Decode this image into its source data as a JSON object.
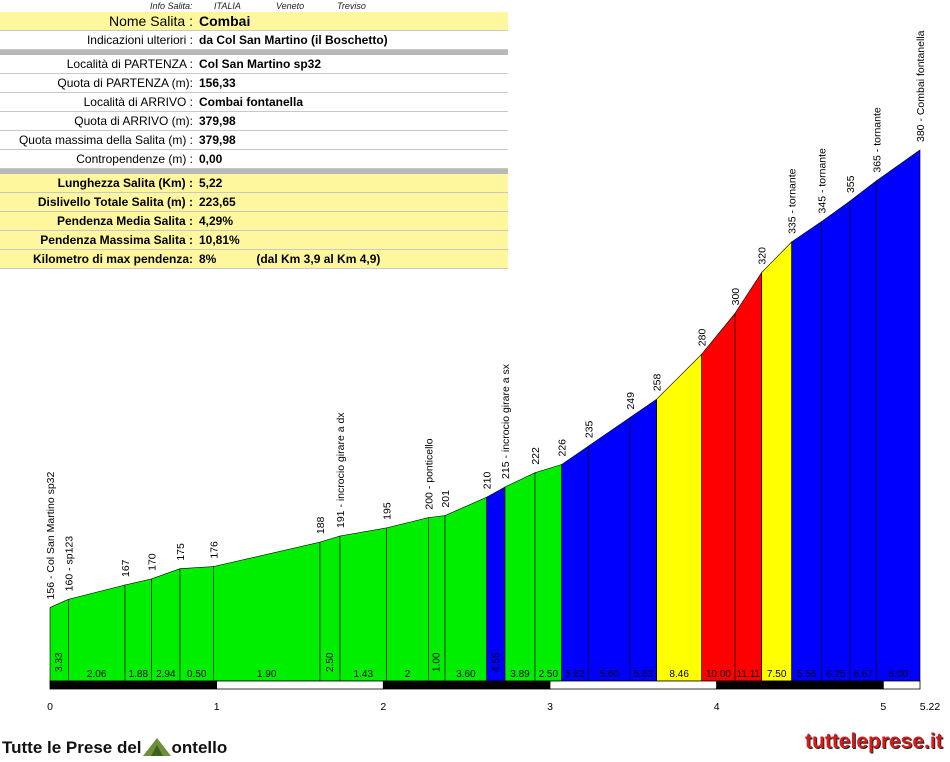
{
  "info": {
    "header_label": "Info Salita:",
    "country": "ITALIA",
    "region": "Veneto",
    "province": "Treviso",
    "rows": [
      {
        "label": "Nome Salita :",
        "value": "Combai"
      },
      {
        "label": "Indicazioni ulteriori :",
        "value": "da Col San Martino (il Boschetto)"
      },
      {
        "label": "Località di PARTENZA :",
        "value": "Col San Martino sp32"
      },
      {
        "label": "Quota di PARTENZA (m):",
        "value": "156,33"
      },
      {
        "label": "Località di ARRIVO :",
        "value": "Combai fontanella"
      },
      {
        "label": "Quota di ARRIVO (m):",
        "value": "379,98"
      },
      {
        "label": "Quota massima della Salita (m) :",
        "value": "379,98"
      },
      {
        "label": "Contropendenze (m) :",
        "value": "0,00"
      },
      {
        "label": "Lunghezza Salita (Km) :",
        "value": "5,22"
      },
      {
        "label": "Dislivello Totale Salita (m) :",
        "value": "223,65"
      },
      {
        "label": "Pendenza Media Salita :",
        "value": "4,29%"
      },
      {
        "label": "Pendenza Massima Salita :",
        "value": "10,81%"
      },
      {
        "label": "Kilometro di max pendenza:",
        "value": "8%",
        "note": "(dal Km 3,9 al Km 4,9)"
      }
    ]
  },
  "chart_data": {
    "type": "area",
    "x_unit": "km",
    "x_ticks": [
      "0",
      "1",
      "2",
      "3",
      "4",
      "5",
      "5.22"
    ],
    "xlim": [
      0,
      5.22
    ],
    "ylim": [
      120,
      400
    ],
    "points": [
      {
        "x": 0.0,
        "y": 156,
        "label": "156 - Col San Martino sp32"
      },
      {
        "x": 0.11,
        "y": 160,
        "label": "160 - sp123"
      },
      {
        "x": 0.45,
        "y": 167,
        "label": "167"
      },
      {
        "x": 0.61,
        "y": 170,
        "label": "170"
      },
      {
        "x": 0.78,
        "y": 175,
        "label": "175"
      },
      {
        "x": 0.98,
        "y": 176,
        "label": "176"
      },
      {
        "x": 1.62,
        "y": 188,
        "label": "188"
      },
      {
        "x": 1.74,
        "y": 191,
        "label": "191 - incrocio girare a dx"
      },
      {
        "x": 2.02,
        "y": 195,
        "label": "195"
      },
      {
        "x": 2.27,
        "y": 200,
        "label": "200 - ponticello"
      },
      {
        "x": 2.37,
        "y": 201,
        "label": "201"
      },
      {
        "x": 2.62,
        "y": 210,
        "label": "210"
      },
      {
        "x": 2.73,
        "y": 215,
        "label": "215 - incrocio girare a sx"
      },
      {
        "x": 2.91,
        "y": 222,
        "label": "222"
      },
      {
        "x": 3.07,
        "y": 226,
        "label": "226"
      },
      {
        "x": 3.23,
        "y": 235,
        "label": "235"
      },
      {
        "x": 3.48,
        "y": 249,
        "label": "249"
      },
      {
        "x": 3.64,
        "y": 258,
        "label": "258"
      },
      {
        "x": 3.91,
        "y": 280,
        "label": "280"
      },
      {
        "x": 4.11,
        "y": 300,
        "label": "300"
      },
      {
        "x": 4.27,
        "y": 320,
        "label": "320"
      },
      {
        "x": 4.45,
        "y": 335,
        "label": "335 - tornante"
      },
      {
        "x": 4.63,
        "y": 345,
        "label": "345 - tornante"
      },
      {
        "x": 4.8,
        "y": 355,
        "label": "355"
      },
      {
        "x": 4.96,
        "y": 365,
        "label": "365 - tornante"
      },
      {
        "x": 5.22,
        "y": 380,
        "label": "380 - Combai fontanella"
      }
    ],
    "segments": [
      {
        "grade": "3.33",
        "color": "green"
      },
      {
        "grade": "2.06",
        "color": "green"
      },
      {
        "grade": "1.88",
        "color": "green"
      },
      {
        "grade": "2.94",
        "color": "green"
      },
      {
        "grade": "0.50",
        "color": "green"
      },
      {
        "grade": "1.90",
        "color": "green"
      },
      {
        "grade": "2.50",
        "color": "green"
      },
      {
        "grade": "1.43",
        "color": "green"
      },
      {
        "grade": "2",
        "color": "green"
      },
      {
        "grade": "1.00",
        "color": "green"
      },
      {
        "grade": "3.60",
        "color": "green"
      },
      {
        "grade": "4.55",
        "color": "blue"
      },
      {
        "grade": "3.89",
        "color": "green"
      },
      {
        "grade": "2.50",
        "color": "green"
      },
      {
        "grade": "5.62",
        "color": "blue"
      },
      {
        "grade": "5.60",
        "color": "blue"
      },
      {
        "grade": "5.63",
        "color": "blue"
      },
      {
        "grade": "8.46",
        "color": "yellow"
      },
      {
        "grade": "10.00",
        "color": "red"
      },
      {
        "grade": "11.11",
        "color": "red"
      },
      {
        "grade": "7.50",
        "color": "yellow"
      },
      {
        "grade": "5.56",
        "color": "blue"
      },
      {
        "grade": "6.25",
        "color": "blue"
      },
      {
        "grade": "6.67",
        "color": "blue"
      },
      {
        "grade": "6.00",
        "color": "blue"
      }
    ],
    "palette": {
      "green": "#00ee00",
      "blue": "#0000ff",
      "yellow": "#ffff00",
      "red": "#ff0000"
    }
  },
  "footer": {
    "logo_left": "Tutte le Prese del",
    "logo_right": "ontello",
    "site": "tutteleprese.it"
  }
}
